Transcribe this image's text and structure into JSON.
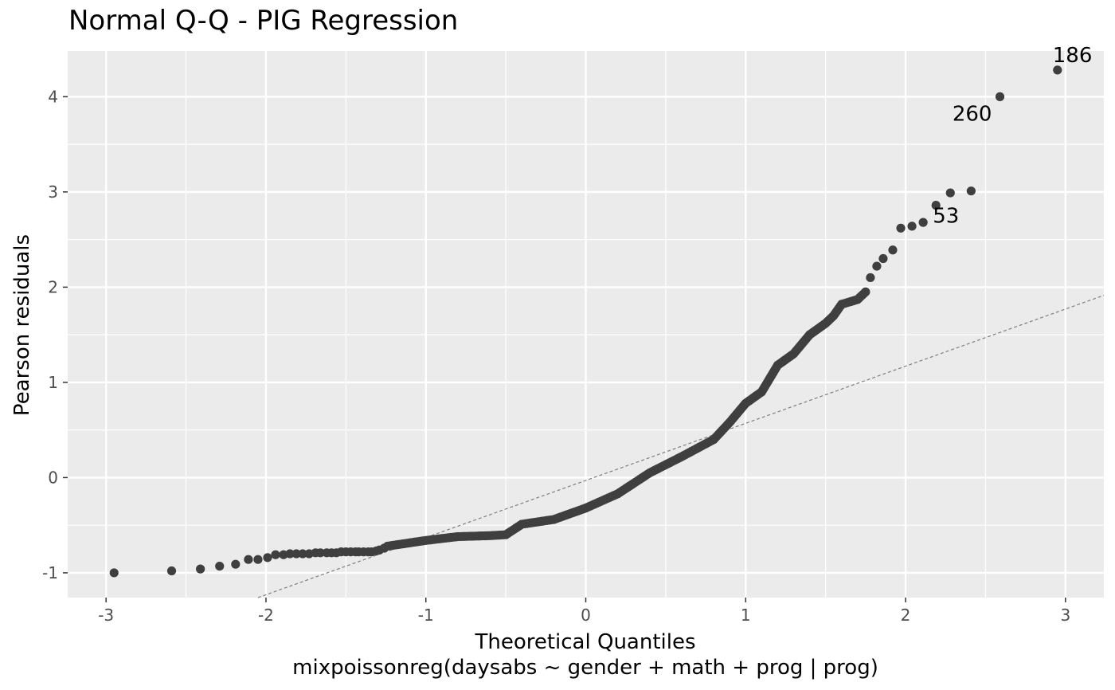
{
  "chart_data": {
    "type": "scatter",
    "title": "Normal Q-Q - PIG Regression",
    "xlabel": "Theoretical Quantiles",
    "xlabel2": "mixpoissonreg(daysabs ~ gender + math + prog | prog)",
    "ylabel": "Pearson residuals",
    "xlim": [
      -3.24,
      3.24
    ],
    "ylim": [
      -1.26,
      4.48
    ],
    "xticks": [
      -3,
      -2,
      -1,
      0,
      1,
      2,
      3
    ],
    "yticks": [
      -1,
      0,
      1,
      2,
      3,
      4
    ],
    "xtick_labels": [
      "-3",
      "-2",
      "-1",
      "0",
      "1",
      "2",
      "3"
    ],
    "ytick_labels": [
      "-1",
      "0",
      "1",
      "2",
      "3",
      "4"
    ],
    "grid": true,
    "reference_line": {
      "slope": 0.6,
      "intercept": -0.03,
      "style": "dashed"
    },
    "point_color": "#3f3f3f",
    "line_color": "#7f7f7f",
    "panel_color": "#ebebeb",
    "grid_color": "#ffffff",
    "labeled_points": [
      {
        "label": "186",
        "x": 2.95,
        "y": 4.28
      },
      {
        "label": "260",
        "x": 2.59,
        "y": 4.0
      },
      {
        "label": "53",
        "x": 2.19,
        "y": 2.86
      }
    ],
    "curve_knots": [
      [
        -1.24,
        -0.72
      ],
      [
        -1.0,
        -0.66
      ],
      [
        -0.8,
        -0.62
      ],
      [
        -0.6,
        -0.61
      ],
      [
        -0.5,
        -0.6
      ],
      [
        -0.4,
        -0.49
      ],
      [
        -0.2,
        -0.44
      ],
      [
        0.0,
        -0.32
      ],
      [
        0.2,
        -0.17
      ],
      [
        0.4,
        0.05
      ],
      [
        0.6,
        0.22
      ],
      [
        0.8,
        0.4
      ],
      [
        0.9,
        0.58
      ],
      [
        1.0,
        0.78
      ],
      [
        1.1,
        0.9
      ],
      [
        1.2,
        1.18
      ],
      [
        1.3,
        1.3
      ],
      [
        1.4,
        1.5
      ],
      [
        1.5,
        1.62
      ],
      [
        1.55,
        1.7
      ],
      [
        1.6,
        1.82
      ],
      [
        1.7,
        1.87
      ],
      [
        1.75,
        1.95
      ]
    ],
    "points": [
      [
        -2.95,
        -1.0
      ],
      [
        -2.59,
        -0.98
      ],
      [
        -2.41,
        -0.96
      ],
      [
        -2.29,
        -0.93
      ],
      [
        -2.19,
        -0.91
      ],
      [
        -2.11,
        -0.86
      ],
      [
        -2.05,
        -0.86
      ],
      [
        -1.99,
        -0.84
      ],
      [
        -1.94,
        -0.81
      ],
      [
        -1.89,
        -0.81
      ],
      [
        -1.85,
        -0.8
      ],
      [
        -1.81,
        -0.8
      ],
      [
        -1.77,
        -0.8
      ],
      [
        -1.73,
        -0.8
      ],
      [
        -1.69,
        -0.79
      ],
      [
        -1.66,
        -0.79
      ],
      [
        -1.62,
        -0.79
      ],
      [
        -1.59,
        -0.79
      ],
      [
        -1.56,
        -0.79
      ],
      [
        -1.53,
        -0.78
      ],
      [
        -1.5,
        -0.78
      ],
      [
        -1.47,
        -0.78
      ],
      [
        -1.44,
        -0.78
      ],
      [
        -1.42,
        -0.78
      ],
      [
        -1.39,
        -0.78
      ],
      [
        -1.36,
        -0.78
      ],
      [
        -1.34,
        -0.78
      ],
      [
        -1.31,
        -0.77
      ],
      [
        -1.29,
        -0.76
      ],
      [
        -1.26,
        -0.74
      ],
      [
        1.78,
        2.1
      ],
      [
        1.82,
        2.22
      ],
      [
        1.86,
        2.3
      ],
      [
        1.92,
        2.39
      ],
      [
        1.97,
        2.62
      ],
      [
        2.04,
        2.64
      ],
      [
        2.11,
        2.68
      ],
      [
        2.28,
        2.99
      ],
      [
        2.41,
        3.01
      ]
    ]
  }
}
